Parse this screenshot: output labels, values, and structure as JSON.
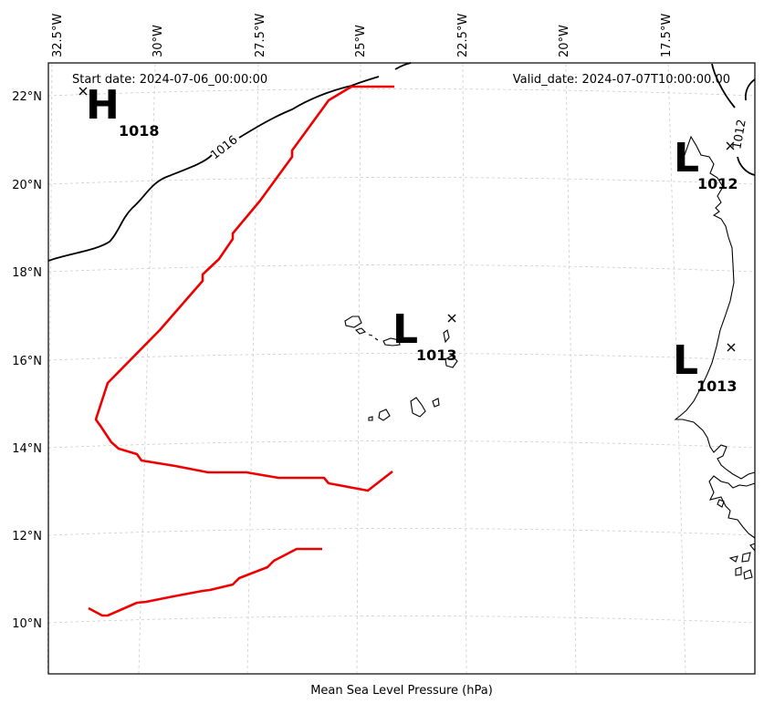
{
  "map": {
    "start_date_label": "Start date: 2024-07-06_00:00:00",
    "valid_date_label": "Valid_date: 2024-07-07T10:00:00.00",
    "xlabel": "Mean Sea Level Pressure (hPa)",
    "lon_ticks": [
      "32.5°W",
      "30°W",
      "27.5°W",
      "25°W",
      "22.5°W",
      "20°W",
      "17.5°W"
    ],
    "lat_ticks": [
      "22°N",
      "20°N",
      "18°N",
      "16°N",
      "14°N",
      "12°N",
      "10°N"
    ],
    "extent": {
      "lon_min": -33.5,
      "lon_max": -16.2,
      "lat_min": 9.0,
      "lat_max": 22.8
    },
    "pressure_centers": [
      {
        "type": "H",
        "value": "1018",
        "lon": -32.6,
        "lat": 22.1
      },
      {
        "type": "L",
        "value": "1013",
        "lon": -22.5,
        "lat": 16.9
      },
      {
        "type": "L",
        "value": "1012",
        "lon": -16.7,
        "lat": 20.9
      },
      {
        "type": "L",
        "value": "1013",
        "lon": -16.6,
        "lat": 16.3
      }
    ],
    "isobars": [
      {
        "label": "1016"
      },
      {
        "label": "1012"
      }
    ],
    "colors": {
      "track": "#ee0000",
      "isobar": "#000000",
      "coast": "#000000",
      "grid": "#cccccc",
      "frame": "#000000"
    }
  }
}
